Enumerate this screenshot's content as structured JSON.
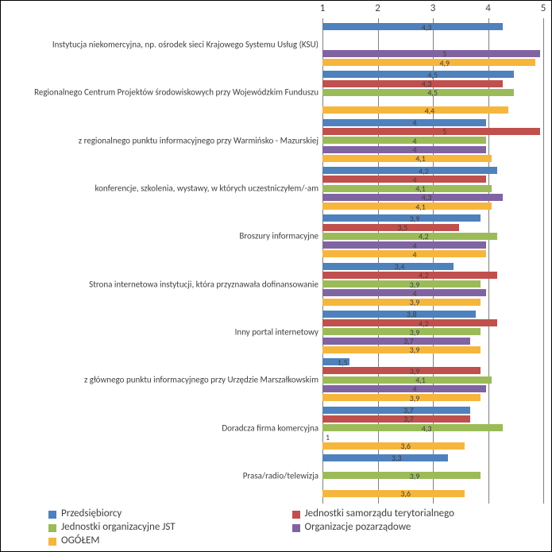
{
  "type": "bar",
  "orientation": "horizontal",
  "xlim": [
    1,
    5
  ],
  "xtick_step": 1,
  "xticks": [
    1,
    2,
    3,
    4,
    5
  ],
  "background_color": "#ffffff",
  "grid_color": "#808080",
  "axis_fontsize": 13,
  "cat_fontsize": 11,
  "value_fontsize": 10,
  "series": [
    {
      "key": "przed",
      "name": "Przedsiębiorcy",
      "color": "#4f81bd"
    },
    {
      "key": "jst",
      "name": "Jednostki samorządu terytorialnego",
      "color": "#c0504d"
    },
    {
      "key": "org",
      "name": "Jednostki organizacyjne JST",
      "color": "#9bbb59"
    },
    {
      "key": "ngo",
      "name": "Organizacje pozarządowe",
      "color": "#8064a2"
    },
    {
      "key": "ogolem",
      "name": "OGÓŁEM",
      "color": "#f6b63c"
    }
  ],
  "categories": [
    {
      "label": "Instytucja niekomercyjna, np. ośrodek sieci Krajowego Systemu Usług (KSU)",
      "values": {
        "przed": 4.3,
        "jst": null,
        "org": null,
        "ngo": 5,
        "ogolem": 4.9
      }
    },
    {
      "label": "Regionalnego Centrum Projektów środowiskowych przy Wojewódzkim Funduszu",
      "values": {
        "przed": 4.5,
        "jst": 4.3,
        "org": 4.5,
        "ngo": null,
        "ogolem": 4.4
      }
    },
    {
      "label": "z regionalnego punktu informacyjnego przy Warmińsko - Mazurskiej",
      "values": {
        "przed": 4,
        "jst": 5,
        "org": 4,
        "ngo": 4,
        "ogolem": 4.1
      }
    },
    {
      "label": "konferencje, szkolenia, wystawy, w których uczestniczyłem/-am",
      "values": {
        "przed": 4.2,
        "jst": 4,
        "org": 4.1,
        "ngo": 4.3,
        "ogolem": 4.1
      }
    },
    {
      "label": "Broszury informacyjne",
      "values": {
        "przed": 3.9,
        "jst": 3.5,
        "org": 4.2,
        "ngo": 4,
        "ogolem": 4
      }
    },
    {
      "label": "Strona internetowa instytucji, która przyznawała dofinansowanie",
      "values": {
        "przed": 3.4,
        "jst": 4.2,
        "org": 3.9,
        "ngo": 4,
        "ogolem": 3.9
      }
    },
    {
      "label": "Inny portal internetowy",
      "values": {
        "przed": 3.8,
        "jst": 4.2,
        "org": 3.9,
        "ngo": 3.7,
        "ogolem": 3.9
      }
    },
    {
      "label": "z głównego punktu informacyjnego przy Urzędzie Marszałkowskim",
      "values": {
        "przed": 1.5,
        "jst": 3.9,
        "org": 4.1,
        "ngo": 4,
        "ogolem": 3.9
      }
    },
    {
      "label": "Doradcza firma komercyjna",
      "values": {
        "przed": 3.7,
        "jst": 3.7,
        "org": 4.3,
        "ngo": 1,
        "ogolem": 3.6
      }
    },
    {
      "label": "Prasa/radio/telewizja",
      "values": {
        "przed": 3.3,
        "jst": null,
        "org": 3.9,
        "ngo": null,
        "ogolem": 3.6
      }
    }
  ],
  "value_format": "comma"
}
